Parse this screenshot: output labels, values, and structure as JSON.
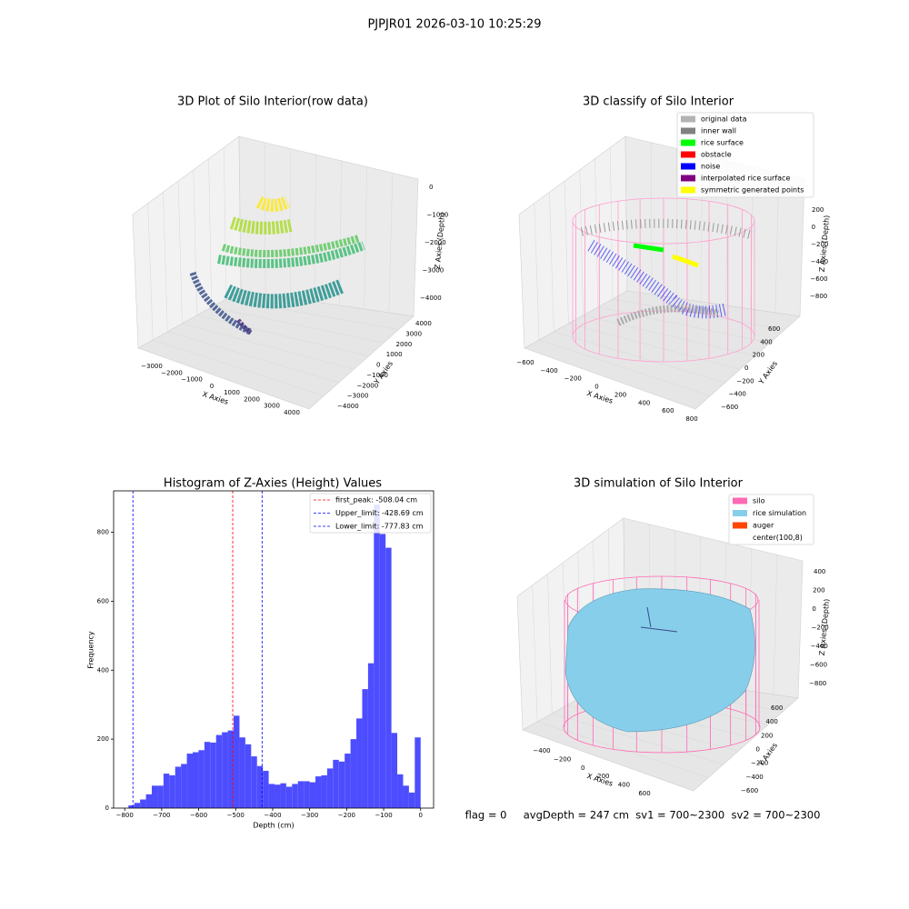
{
  "title": "PJPJR01 2026-03-10 10:25:29",
  "footer": "flag = 0     avgDepth = 247 cm  sv1 = 700~2300  sv2 = 700~2300",
  "chart_data": [
    {
      "type": "scatter3d",
      "title": "3D Plot of Silo Interior(row data)",
      "xlabel": "X Axies",
      "ylabel": "Y Axies",
      "zlabel": "Z Axies (Depth)",
      "xticks": [
        {
          "value": -3000,
          "label": "−3000"
        },
        {
          "value": -2000,
          "label": "−2000"
        },
        {
          "value": -1000,
          "label": "−1000"
        },
        0,
        1000,
        2000,
        3000,
        4000
      ],
      "yticks": [
        {
          "value": -4000,
          "label": "−4000"
        },
        {
          "value": -3000,
          "label": "−3000"
        },
        {
          "value": -2000,
          "label": "−2000"
        },
        {
          "value": -1000,
          "label": "−1000"
        },
        0,
        1000,
        2000,
        3000,
        4000
      ],
      "zticks": [
        0,
        {
          "value": -1000,
          "label": "−1000"
        },
        {
          "value": -2000,
          "label": "−2000"
        },
        {
          "value": -3000,
          "label": "−3000"
        },
        {
          "value": -4000,
          "label": "−4000"
        }
      ]
    },
    {
      "type": "scatter3d",
      "title": "3D classify of Silo Interior",
      "xlabel": "X Axies",
      "ylabel": "Y Axies",
      "zlabel": "Z Axies (Depth)",
      "xticks": [
        {
          "value": -600,
          "label": "−600"
        },
        {
          "value": -400,
          "label": "−400"
        },
        {
          "value": -200,
          "label": "−200"
        },
        0,
        200,
        400,
        600,
        800
      ],
      "yticks": [
        {
          "value": -600,
          "label": "−600"
        },
        {
          "value": -400,
          "label": "−400"
        },
        {
          "value": -200,
          "label": "−200"
        },
        0,
        200,
        400,
        600
      ],
      "zticks": [
        200,
        0,
        {
          "value": -200,
          "label": "−200"
        },
        {
          "value": -400,
          "label": "−400"
        },
        {
          "value": -600,
          "label": "−600"
        },
        {
          "value": -800,
          "label": "−800"
        }
      ],
      "legend": [
        {
          "name": "original data",
          "color": "#b3b3b3"
        },
        {
          "name": "inner wall",
          "color": "#808080"
        },
        {
          "name": "rice surface",
          "color": "#00ff00"
        },
        {
          "name": "obstacle",
          "color": "#ff0000"
        },
        {
          "name": "noise",
          "color": "#0000ff"
        },
        {
          "name": "interpolated rice surface",
          "color": "#800080"
        },
        {
          "name": "symmetric generated points",
          "color": "#ffff00"
        }
      ]
    },
    {
      "type": "histogram",
      "title": "Histogram of Z-Axies (Height) Values",
      "xlabel": "Depth (cm)",
      "ylabel": "Frequency",
      "color": "#4d4dff",
      "bins": [
        -790,
        -774.2,
        -758.4,
        -742.6,
        -726.8,
        -711,
        -695.2,
        -679.4,
        -663.6,
        -647.8,
        -632,
        -616.2,
        -600.4,
        -584.6,
        -568.8,
        -553,
        -537.2,
        -521.4,
        -505.6,
        -489.8,
        -474,
        -458.2,
        -442.4,
        -426.6,
        -410.8,
        -395,
        -379.2,
        -363.4,
        -347.6,
        -331.8,
        -316,
        -300.2,
        -284.4,
        -268.6,
        -252.8,
        -237,
        -221.2,
        -205.4,
        -189.6,
        -173.8,
        -158,
        -142.2,
        -126.4,
        -110.6,
        -94.8,
        -79,
        -63.2,
        -47.4,
        -31.6,
        -15.8,
        0
      ],
      "counts": [
        8,
        15,
        25,
        40,
        65,
        65,
        100,
        95,
        120,
        128,
        158,
        162,
        168,
        192,
        190,
        212,
        220,
        225,
        268,
        205,
        185,
        150,
        122,
        108,
        70,
        68,
        72,
        62,
        70,
        78,
        78,
        75,
        92,
        95,
        115,
        140,
        135,
        158,
        200,
        260,
        345,
        420,
        880,
        795,
        755,
        218,
        98,
        65,
        45,
        205
      ],
      "xlim": [
        -830,
        35
      ],
      "ylim": [
        0,
        920
      ],
      "xticks": [
        {
          "value": -800,
          "label": "−800"
        },
        {
          "value": -700,
          "label": "−700"
        },
        {
          "value": -600,
          "label": "−600"
        },
        {
          "value": -500,
          "label": "−500"
        },
        {
          "value": -400,
          "label": "−400"
        },
        {
          "value": -300,
          "label": "−300"
        },
        {
          "value": -200,
          "label": "−200"
        },
        {
          "value": -100,
          "label": "−100"
        },
        0
      ],
      "yticks": [
        0,
        200,
        400,
        600,
        800
      ],
      "lines": [
        {
          "label": "first_peak: -508.04 cm",
          "value": -508.04,
          "color": "#ff0000"
        },
        {
          "label": "Upper_limit: -428.69 cm",
          "value": -428.69,
          "color": "#0000ff"
        },
        {
          "label": "Lower_limit: -777.83 cm",
          "value": -777.83,
          "color": "#0000ff"
        }
      ]
    },
    {
      "type": "surface3d",
      "title": "3D simulation of Silo Interior",
      "xlabel": "X Axies",
      "ylabel": "Y Axies",
      "zlabel": "Z Axies (Depth)",
      "xticks": [
        {
          "value": -400,
          "label": "−400"
        },
        {
          "value": -200,
          "label": "−200"
        },
        0,
        200,
        400,
        600
      ],
      "yticks": [
        {
          "value": -600,
          "label": "−600"
        },
        {
          "value": -400,
          "label": "−400"
        },
        {
          "value": -200,
          "label": "−200"
        },
        0,
        200,
        400,
        600
      ],
      "zticks": [
        400,
        200,
        0,
        {
          "value": -200,
          "label": "−200"
        },
        {
          "value": -400,
          "label": "−400"
        },
        {
          "value": -600,
          "label": "−600"
        },
        {
          "value": -800,
          "label": "−800"
        }
      ],
      "legend": [
        {
          "name": "silo",
          "color": "#ff69b4"
        },
        {
          "name": "rice simulation",
          "color": "#87ceeb"
        },
        {
          "name": "auger",
          "color": "#ff4500"
        },
        {
          "name": "center(100,8)",
          "color": "#ffffff"
        }
      ]
    }
  ]
}
